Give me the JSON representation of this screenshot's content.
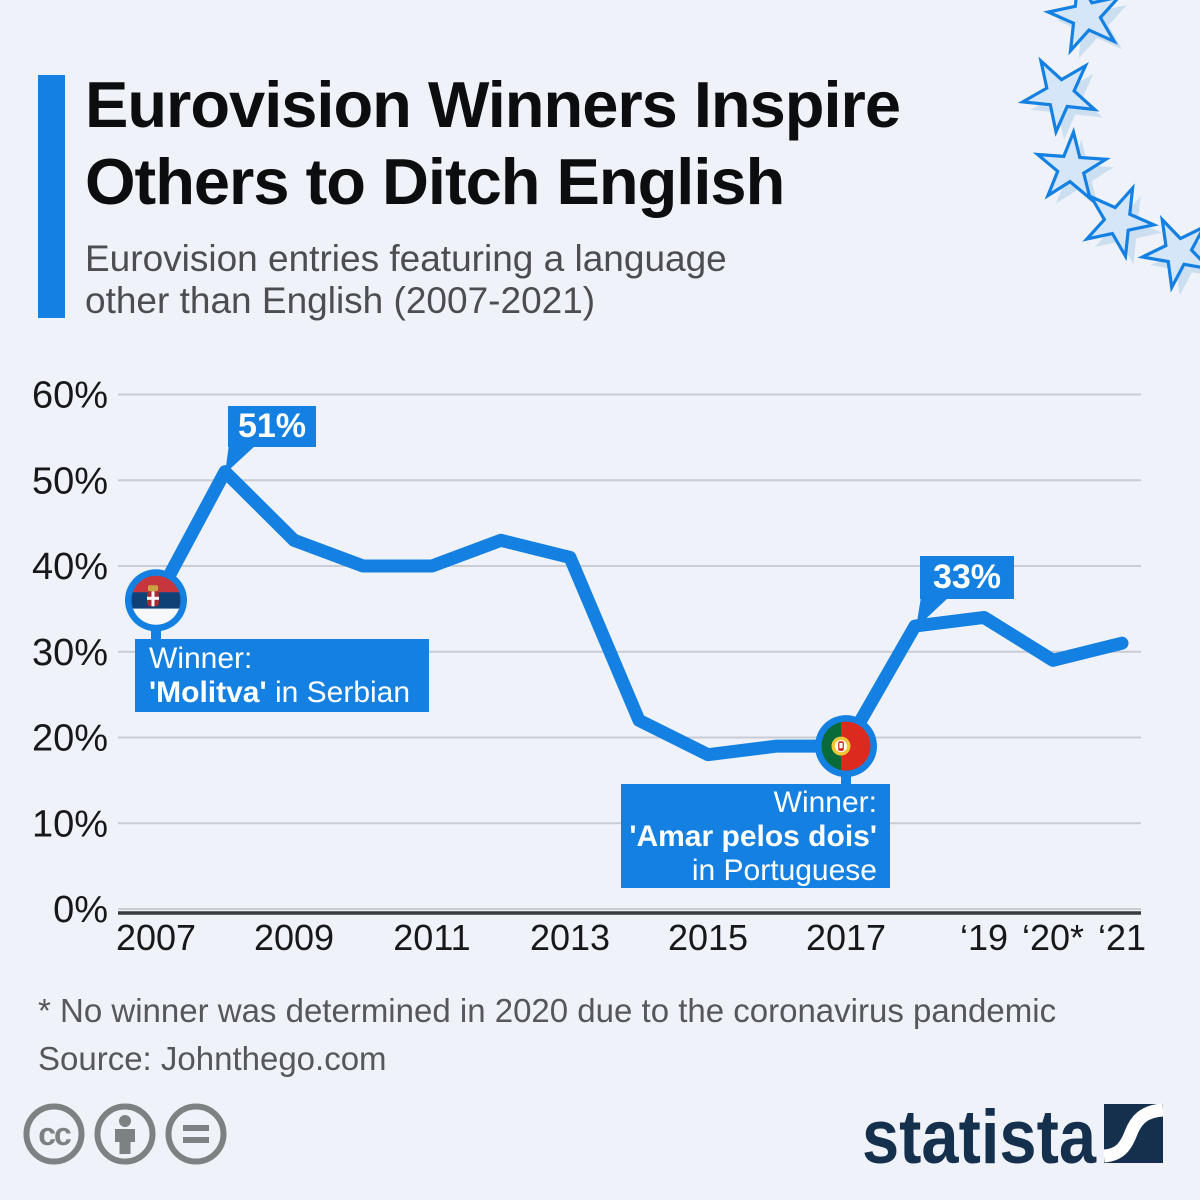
{
  "colors": {
    "accent_blue": "#1480e2",
    "background": "#eff3f9",
    "title_text": "#0c0d0e",
    "subtitle_text": "#4b4d50",
    "grid": "#c9ccd2",
    "axis": "#36393d",
    "footnote_text": "#55575a",
    "brand_navy": "#15304d",
    "license_gray": "#7c8181",
    "star_fill": "#d4e6f8",
    "star_shadow": "#bdd5ee"
  },
  "header": {
    "title_line1": "Eurovision Winners Inspire",
    "title_line2": "Others to Ditch English",
    "subtitle_line1": "Eurovision entries featuring a language",
    "subtitle_line2": "other than English (2007-2021)"
  },
  "chart_data": {
    "type": "line",
    "title": "Eurovision entries featuring a language other than English (2007-2021)",
    "x": [
      2007,
      2008,
      2009,
      2010,
      2011,
      2012,
      2013,
      2014,
      2015,
      2016,
      2017,
      2018,
      2019,
      2020,
      2021
    ],
    "values": [
      36,
      51,
      43,
      40,
      40,
      43,
      41,
      22,
      18,
      19,
      19,
      33,
      34,
      29,
      31
    ],
    "unit": "%",
    "line_color": "#1480e2",
    "grid": true,
    "ylim": [
      0,
      60
    ],
    "yticks": {
      "values": [
        0,
        10,
        20,
        30,
        40,
        50,
        60
      ],
      "labels": [
        "0%",
        "10%",
        "20%",
        "30%",
        "40%",
        "50%",
        "60%"
      ]
    },
    "xticks": {
      "years": [
        2007,
        2009,
        2011,
        2013,
        2015,
        2017,
        2019,
        2020,
        2021
      ],
      "labels": [
        "2007",
        "2009",
        "2011",
        "2013",
        "2015",
        "2017",
        "‘19",
        "‘20*",
        "‘21"
      ]
    },
    "annotations": {
      "peak": {
        "year": 2008,
        "value": 51,
        "label": "51%"
      },
      "recovery": {
        "year": 2018,
        "value": 33,
        "label": "33%"
      },
      "winner_2007": {
        "year": 2007,
        "value": 36,
        "flag": "serbia-flag",
        "intro": "Winner:",
        "song": "'Molitva'",
        "suffix": " in Serbian"
      },
      "winner_2017": {
        "year": 2017,
        "value": 19,
        "flag": "portugal-flag",
        "intro": "Winner:",
        "song": "'Amar pelos dois'",
        "suffix": "in Portuguese"
      }
    }
  },
  "footer": {
    "footnote": "* No winner was determined in 2020 due to the coronavirus pandemic",
    "source": "Source: Johnthego.com",
    "license_icons": [
      "cc-icon",
      "attribution-icon",
      "no-derivatives-icon"
    ],
    "brand": "statista"
  }
}
